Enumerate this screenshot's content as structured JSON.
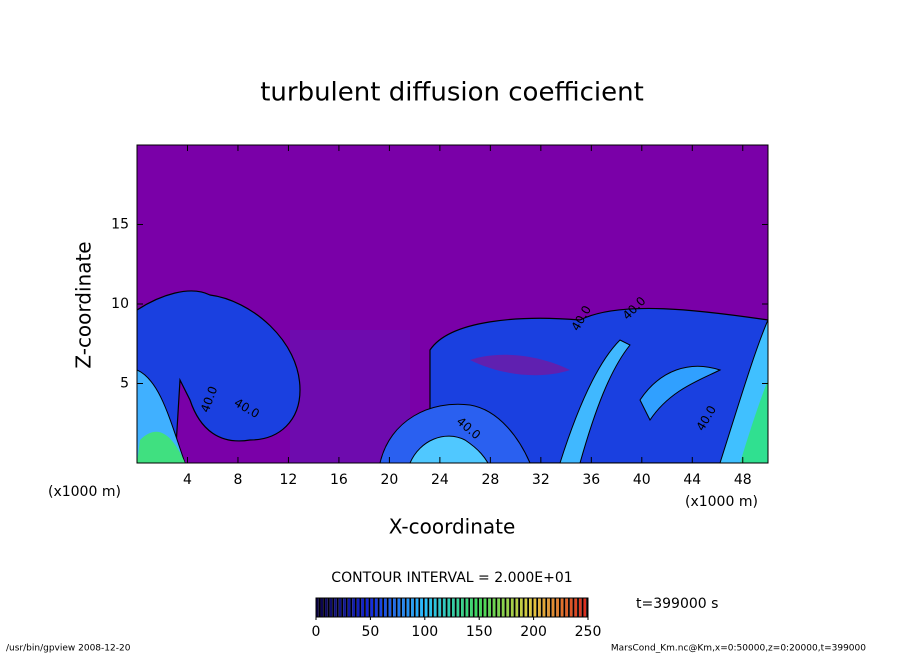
{
  "chart_data": {
    "type": "contour",
    "title": "turbulent diffusion coefficient",
    "xlabel": "X-coordinate",
    "ylabel": "Z-coordinate",
    "x_unit_left": "(x1000 m)",
    "x_unit_right": "(x1000 m)",
    "xlim": [
      0,
      50
    ],
    "xticks": [
      4,
      8,
      12,
      16,
      20,
      24,
      28,
      32,
      36,
      40,
      44,
      48
    ],
    "ylim": [
      0,
      20
    ],
    "yticks": [
      5,
      10,
      15
    ],
    "contour_labels": [
      "40.0",
      "40.0",
      "40.0",
      "40.0",
      "40.0",
      "40.0"
    ],
    "contour_interval_text": "CONTOUR INTERVAL = 2.000E+01",
    "time_text": "t=399000 s",
    "colorbar": {
      "lim": [
        0,
        250
      ],
      "ticks": [
        0,
        50,
        100,
        150,
        200,
        250
      ]
    },
    "footer_left": "/usr/bin/gpview  2008-12-20",
    "footer_right": "MarsCond_Km.nc@Km,x=0:50000,z=0:20000,t=399000"
  }
}
